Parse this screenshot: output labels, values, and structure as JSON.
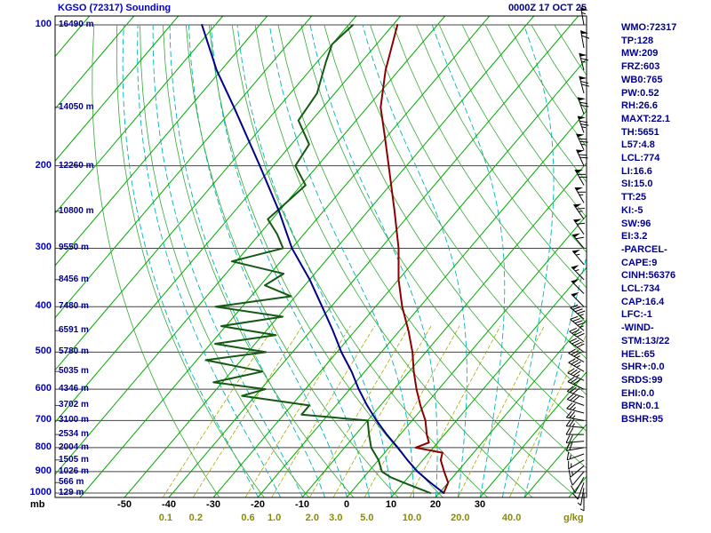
{
  "header": {
    "station_title": "KGSO (72317) Sounding",
    "datetime": "0000Z 17 OCT 25"
  },
  "axes": {
    "pressure_unit": "mb",
    "pressure_ticks": [
      100,
      200,
      300,
      400,
      500,
      600,
      700,
      800,
      900,
      1000
    ],
    "minor_pressure_ticks": [
      150,
      250,
      350,
      450,
      550,
      650,
      750,
      850,
      950
    ],
    "height_labels": [
      {
        "p": 100,
        "label": "16490 m"
      },
      {
        "p": 150,
        "label": "14050 m"
      },
      {
        "p": 200,
        "label": "12260 m"
      },
      {
        "p": 250,
        "label": "10800 m"
      },
      {
        "p": 300,
        "label": "9550 m"
      },
      {
        "p": 350,
        "label": "8456 m"
      },
      {
        "p": 400,
        "label": "7480 m"
      },
      {
        "p": 450,
        "label": "6591 m"
      },
      {
        "p": 500,
        "label": "5780 m"
      },
      {
        "p": 550,
        "label": "5035 m"
      },
      {
        "p": 600,
        "label": "4346 m"
      },
      {
        "p": 650,
        "label": "3702 m"
      },
      {
        "p": 700,
        "label": "3100 m"
      },
      {
        "p": 750,
        "label": "2534 m"
      },
      {
        "p": 800,
        "label": "2004 m"
      },
      {
        "p": 850,
        "label": "1505 m"
      },
      {
        "p": 900,
        "label": "1026 m"
      },
      {
        "p": 950,
        "label": "566 m"
      },
      {
        "p": 1000,
        "label": "129 m"
      }
    ],
    "temp_ticks_c": [
      -50,
      -40,
      -30,
      -20,
      -10,
      0,
      10,
      20,
      30
    ],
    "mixing_ratio_values": [
      0.1,
      0.2,
      0.6,
      1.0,
      2.0,
      3.0,
      5.0,
      10.0,
      20.0,
      40.0
    ],
    "mixing_ratio_tick_labels": [
      "0.1",
      "0.2",
      "0.6",
      "1.0",
      "2.0",
      "3.0",
      "5.0",
      "10.0",
      "20.0",
      "40.0"
    ],
    "mixing_ratio_unit": "g/kg"
  },
  "indices": [
    "WMO:72317",
    "TP:128",
    "MW:209",
    "FRZ:603",
    "WB0:765",
    "PW:0.52",
    "RH:26.6",
    "MAXT:22.1",
    "TH:5651",
    "L57:4.8",
    "LCL:774",
    "LI:16.6",
    "SI:15.0",
    "TT:25",
    "KI:-5",
    "SW:96",
    "EI:3.2",
    "-PARCEL-",
    "CAPE:9",
    "CINH:56376",
    "LCL:734",
    "CAP:16.4",
    "LFC:-1",
    "-WIND-",
    "STM:13/22",
    "HEL:65",
    "SHR+:0.0",
    "SRDS:99",
    "EHI:0.0",
    "BRN:0.1",
    "BSHR:95"
  ],
  "colors": {
    "isobar": "#444444",
    "isotherm": "#00aa00",
    "dry_adiabat": "#33aa33",
    "moist_adiabat": "#00b5b5",
    "mixing_ratio": "#aaaa00",
    "temperature": "#8b0000",
    "dewpoint": "#155915",
    "parcel": "#00008b",
    "barbs": "#000000",
    "border": "#000000"
  },
  "chart_data": {
    "type": "line",
    "chart": "skew-t log-p sounding",
    "title": "KGSO (72317) Sounding 0000Z 17 OCT 25",
    "xlabel": "Temperature (C, skewed) / mixing ratio (g/kg)",
    "ylabel": "Pressure (mb, log scale)",
    "ylim": [
      1022,
      96
    ],
    "isotherm_step_c": 10,
    "mixing_ratio_lines_gkg": [
      0.1,
      0.2,
      0.6,
      1.0,
      2.0,
      3.0,
      5.0,
      10.0,
      20.0,
      40.0
    ],
    "series": [
      {
        "name": "temperature",
        "color": "#8b0000",
        "points_p_t": [
          [
            1000,
            21
          ],
          [
            950,
            20
          ],
          [
            900,
            17
          ],
          [
            850,
            14
          ],
          [
            820,
            13
          ],
          [
            800,
            6
          ],
          [
            780,
            8
          ],
          [
            750,
            6
          ],
          [
            700,
            3
          ],
          [
            650,
            -1
          ],
          [
            600,
            -5
          ],
          [
            550,
            -9
          ],
          [
            500,
            -13
          ],
          [
            450,
            -18
          ],
          [
            400,
            -24
          ],
          [
            350,
            -30
          ],
          [
            300,
            -36
          ],
          [
            250,
            -44
          ],
          [
            200,
            -54
          ],
          [
            175,
            -60
          ],
          [
            150,
            -67
          ],
          [
            125,
            -73
          ],
          [
            100,
            -79
          ]
        ]
      },
      {
        "name": "dewpoint",
        "color": "#155915",
        "points_p_t": [
          [
            1000,
            18
          ],
          [
            975,
            14
          ],
          [
            950,
            10
          ],
          [
            925,
            6
          ],
          [
            900,
            3
          ],
          [
            850,
            0
          ],
          [
            800,
            -4
          ],
          [
            750,
            -7
          ],
          [
            700,
            -10
          ],
          [
            680,
            -26
          ],
          [
            650,
            -26
          ],
          [
            620,
            -43
          ],
          [
            600,
            -39
          ],
          [
            580,
            -52
          ],
          [
            550,
            -43
          ],
          [
            520,
            -58
          ],
          [
            500,
            -46
          ],
          [
            480,
            -59
          ],
          [
            460,
            -47
          ],
          [
            440,
            -61
          ],
          [
            420,
            -49
          ],
          [
            400,
            -66
          ],
          [
            380,
            -51
          ],
          [
            360,
            -59
          ],
          [
            340,
            -57
          ],
          [
            320,
            -71
          ],
          [
            300,
            -62
          ],
          [
            280,
            -66
          ],
          [
            260,
            -71
          ],
          [
            240,
            -70
          ],
          [
            220,
            -69
          ],
          [
            200,
            -75
          ],
          [
            180,
            -76
          ],
          [
            160,
            -83
          ],
          [
            140,
            -84
          ],
          [
            120,
            -88
          ],
          [
            110,
            -90
          ],
          [
            100,
            -89
          ]
        ]
      },
      {
        "name": "parcel",
        "color": "#00008b",
        "points_p_t": [
          [
            1000,
            21
          ],
          [
            950,
            16
          ],
          [
            900,
            11
          ],
          [
            850,
            6.5
          ],
          [
            800,
            2
          ],
          [
            750,
            -3
          ],
          [
            700,
            -8
          ],
          [
            650,
            -13
          ],
          [
            600,
            -18
          ],
          [
            550,
            -23
          ],
          [
            500,
            -29
          ],
          [
            450,
            -35
          ],
          [
            400,
            -42
          ],
          [
            350,
            -50
          ],
          [
            300,
            -60
          ],
          [
            250,
            -70
          ],
          [
            200,
            -83
          ],
          [
            150,
            -100
          ],
          [
            125,
            -111
          ],
          [
            100,
            -123
          ]
        ]
      }
    ],
    "wind_barbs_p_dir_kt": [
      [
        1000,
        180,
        5
      ],
      [
        975,
        190,
        5
      ],
      [
        950,
        200,
        10
      ],
      [
        925,
        210,
        10
      ],
      [
        900,
        220,
        10
      ],
      [
        875,
        230,
        15
      ],
      [
        850,
        240,
        15
      ],
      [
        825,
        250,
        15
      ],
      [
        800,
        260,
        20
      ],
      [
        775,
        265,
        20
      ],
      [
        750,
        270,
        20
      ],
      [
        725,
        275,
        25
      ],
      [
        700,
        280,
        25
      ],
      [
        675,
        285,
        25
      ],
      [
        650,
        290,
        30
      ],
      [
        625,
        290,
        30
      ],
      [
        600,
        295,
        30
      ],
      [
        575,
        295,
        35
      ],
      [
        550,
        300,
        35
      ],
      [
        525,
        300,
        35
      ],
      [
        500,
        305,
        40
      ],
      [
        475,
        305,
        40
      ],
      [
        450,
        310,
        45
      ],
      [
        425,
        310,
        45
      ],
      [
        400,
        315,
        50
      ],
      [
        375,
        315,
        50
      ],
      [
        350,
        315,
        55
      ],
      [
        325,
        320,
        55
      ],
      [
        300,
        320,
        60
      ],
      [
        280,
        325,
        60
      ],
      [
        260,
        325,
        65
      ],
      [
        240,
        330,
        65
      ],
      [
        220,
        330,
        70
      ],
      [
        200,
        335,
        70
      ],
      [
        185,
        335,
        75
      ],
      [
        170,
        340,
        75
      ],
      [
        155,
        340,
        70
      ],
      [
        140,
        345,
        70
      ],
      [
        125,
        345,
        65
      ],
      [
        112,
        350,
        60
      ],
      [
        100,
        350,
        55
      ]
    ]
  }
}
